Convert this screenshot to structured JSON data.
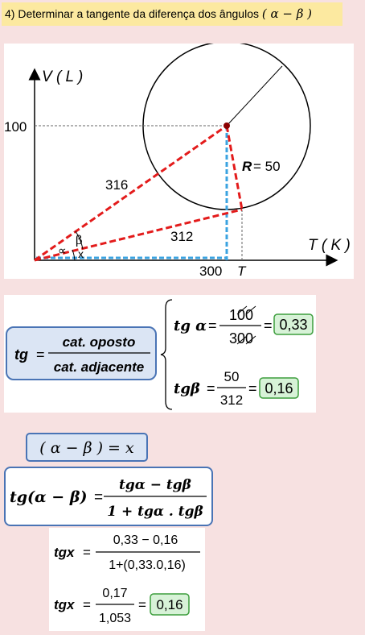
{
  "header": {
    "title_text": "4) Determinar a tangente da diferença dos ângulos",
    "title_math": "( α − β )"
  },
  "diagram": {
    "y_axis_label": "V ( L )",
    "x_axis_label": "T ( K )",
    "y_tick": "100",
    "x_tick": "300",
    "x_tick_symbol": "T",
    "hyp_label": "316",
    "tangent_label": "312",
    "radius_label_symbol": "R",
    "radius_label_value": "= 50",
    "angle_beta": "β",
    "angle_alpha": "∝",
    "angle_x": "x"
  },
  "formula1": {
    "lhs": "tg",
    "eq": "=",
    "numerator": "cat. oposto",
    "denominator": "cat. adjacente"
  },
  "tg_alpha": {
    "lhs": "tg α",
    "eq": "=",
    "numerator": "100",
    "denominator": "300",
    "result": "0,33"
  },
  "tg_beta": {
    "lhs": "tgβ",
    "eq": "=",
    "numerator": "50",
    "denominator": "312",
    "result": "0,16"
  },
  "box2": {
    "text": "( α − β ) = x"
  },
  "formula3": {
    "lhs": "tg(α − β)",
    "eq": "=",
    "numerator": "tgα − tgβ",
    "denominator": "1 + tgα . tgβ"
  },
  "calc1": {
    "lhs": "tgx",
    "eq": "=",
    "numerator": "0,33 − 0,16",
    "denominator": "1+(0,33.0,16)"
  },
  "calc2": {
    "lhs": "tgx",
    "eq": "=",
    "numerator": "0,17",
    "denominator": "1,053",
    "result": "0,16"
  },
  "colors": {
    "title_bg": "#fce9a0",
    "page_bg": "#f7e1e1",
    "red_dashed": "#e31b1b",
    "blue_dashed": "#3ba3e0",
    "result_box_bg": "#d7f2d7",
    "result_box_border": "#3d9e3d",
    "formula_box_bg": "#dbe5f4",
    "formula_box_border": "#4a74b5"
  }
}
